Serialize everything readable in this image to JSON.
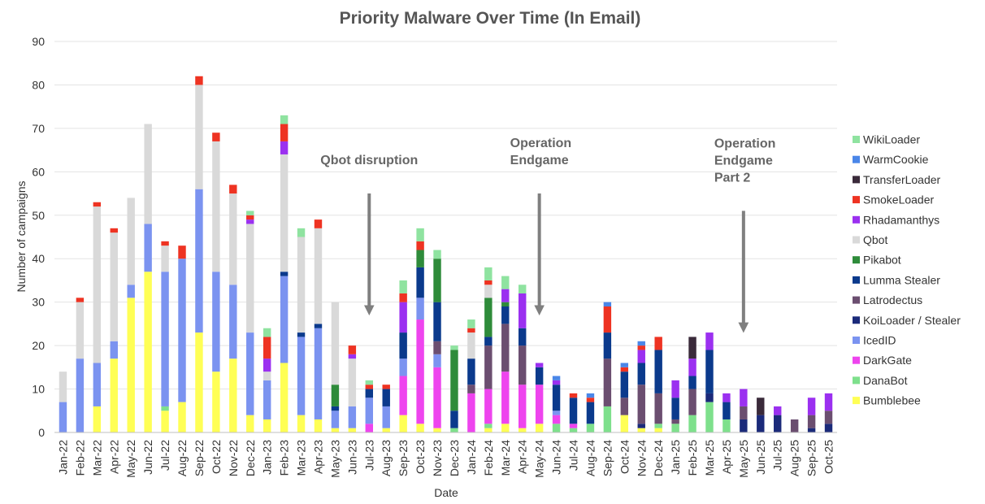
{
  "chart_data": {
    "type": "bar",
    "stacked": true,
    "title": "Priority Malware Over Time (In Email)",
    "xlabel": "Date",
    "ylabel": "Number of campaigns",
    "ylim": [
      0,
      90
    ],
    "yticks": [
      0,
      10,
      20,
      30,
      40,
      50,
      60,
      70,
      80,
      90
    ],
    "grid": true,
    "legend_position": "right",
    "categories": [
      "Jan-22",
      "Feb-22",
      "Mar-22",
      "Apr-22",
      "May-22",
      "Jun-22",
      "Jul-22",
      "Aug-22",
      "Sep-22",
      "Oct-22",
      "Nov-22",
      "Dec-22",
      "Jan-23",
      "Feb-23",
      "Mar-23",
      "Apr-23",
      "May-23",
      "Jun-23",
      "Jul-23",
      "Aug-23",
      "Sep-23",
      "Oct-23",
      "Nov-23",
      "Dec-23",
      "Jan-24",
      "Feb-24",
      "Mar-24",
      "Apr-24",
      "May-24",
      "Jun-24",
      "Jul-24",
      "Aug-24",
      "Sep-24",
      "Oct-24",
      "Nov-24",
      "Dec-24",
      "Jan-25",
      "Feb-25",
      "Mar-25",
      "Apr-25",
      "May-25",
      "Jun-25",
      "Jul-25",
      "Aug-25",
      "Sep-25",
      "Oct-25"
    ],
    "series": [
      {
        "name": "Bumblebee",
        "color": "#FFFF55",
        "values": [
          0,
          0,
          6,
          17,
          31,
          37,
          5,
          7,
          23,
          14,
          17,
          4,
          3,
          16,
          4,
          3,
          1,
          1,
          0,
          1,
          4,
          2,
          1,
          0,
          0,
          1,
          2,
          1,
          2,
          0,
          0,
          0,
          0,
          4,
          1,
          1,
          0,
          0,
          0,
          0,
          0,
          0,
          0,
          0,
          0,
          0
        ]
      },
      {
        "name": "DanaBot",
        "color": "#7EE08C",
        "values": [
          0,
          0,
          0,
          0,
          0,
          0,
          1,
          0,
          0,
          0,
          0,
          0,
          0,
          0,
          0,
          0,
          0,
          0,
          0,
          0,
          0,
          0,
          0,
          1,
          0,
          1,
          0,
          0,
          0,
          2,
          1,
          2,
          6,
          0,
          0,
          1,
          2,
          4,
          7,
          3,
          0,
          0,
          0,
          0,
          0,
          0
        ]
      },
      {
        "name": "DarkGate",
        "color": "#EE44EE",
        "values": [
          0,
          0,
          0,
          0,
          0,
          0,
          0,
          0,
          0,
          0,
          0,
          0,
          0,
          0,
          0,
          0,
          0,
          0,
          2,
          0,
          9,
          24,
          14,
          0,
          9,
          8,
          12,
          10,
          9,
          2,
          1,
          0,
          0,
          0,
          0,
          0,
          0,
          0,
          0,
          0,
          0,
          0,
          0,
          0,
          0,
          0
        ]
      },
      {
        "name": "IcedID",
        "color": "#7B93F0",
        "values": [
          7,
          17,
          10,
          4,
          3,
          11,
          31,
          33,
          33,
          23,
          17,
          19,
          9,
          20,
          18,
          21,
          4,
          5,
          6,
          5,
          4,
          5,
          3,
          0,
          0,
          0,
          0,
          0,
          0,
          1,
          0,
          0,
          0,
          0,
          0,
          0,
          0,
          0,
          0,
          0,
          0,
          0,
          0,
          0,
          0,
          0
        ]
      },
      {
        "name": "KoiLoader / Stealer",
        "color": "#1B2A7A",
        "values": [
          0,
          0,
          0,
          0,
          0,
          0,
          0,
          0,
          0,
          0,
          0,
          0,
          0,
          0,
          0,
          0,
          0,
          0,
          0,
          0,
          0,
          0,
          0,
          0,
          0,
          0,
          0,
          0,
          0,
          0,
          0,
          0,
          0,
          0,
          1,
          0,
          0,
          0,
          2,
          0,
          3,
          4,
          4,
          0,
          1,
          2
        ]
      },
      {
        "name": "Latrodectus",
        "color": "#6B4E70",
        "values": [
          0,
          0,
          0,
          0,
          0,
          0,
          0,
          0,
          0,
          0,
          0,
          0,
          0,
          0,
          0,
          0,
          0,
          0,
          0,
          0,
          0,
          0,
          3,
          0,
          2,
          10,
          11,
          9,
          0,
          0,
          0,
          0,
          11,
          4,
          9,
          7,
          1,
          6,
          0,
          0,
          3,
          0,
          0,
          3,
          3,
          3
        ]
      },
      {
        "name": "Lumma Stealer",
        "color": "#0B3A8C",
        "values": [
          0,
          0,
          0,
          0,
          0,
          0,
          0,
          0,
          0,
          0,
          0,
          0,
          0,
          1,
          1,
          1,
          1,
          0,
          2,
          4,
          6,
          7,
          9,
          4,
          6,
          2,
          4,
          4,
          4,
          6,
          6,
          5,
          6,
          6,
          5,
          10,
          5,
          3,
          10,
          4,
          0,
          0,
          0,
          0,
          0,
          0
        ]
      },
      {
        "name": "Pikabot",
        "color": "#2E8B3A",
        "values": [
          0,
          0,
          0,
          0,
          0,
          0,
          0,
          0,
          0,
          0,
          0,
          0,
          0,
          0,
          0,
          0,
          5,
          0,
          0,
          0,
          0,
          4,
          10,
          14,
          0,
          9,
          1,
          0,
          0,
          0,
          0,
          0,
          0,
          0,
          0,
          0,
          0,
          0,
          0,
          0,
          0,
          0,
          0,
          0,
          0,
          0
        ]
      },
      {
        "name": "Qbot",
        "color": "#D9D9D9",
        "values": [
          7,
          13,
          36,
          25,
          20,
          23,
          6,
          0,
          24,
          30,
          21,
          25,
          2,
          27,
          22,
          22,
          19,
          11,
          0,
          0,
          0,
          0,
          0,
          0,
          6,
          3,
          0,
          0,
          0,
          0,
          0,
          0,
          0,
          0,
          0,
          0,
          0,
          0,
          0,
          0,
          0,
          0,
          0,
          0,
          0,
          0
        ]
      },
      {
        "name": "Rhadamanthys",
        "color": "#9B30F0",
        "values": [
          0,
          0,
          0,
          0,
          0,
          0,
          0,
          0,
          0,
          0,
          0,
          1,
          3,
          3,
          0,
          0,
          0,
          1,
          0,
          0,
          7,
          0,
          0,
          0,
          0,
          0,
          3,
          8,
          1,
          1,
          0,
          0,
          0,
          0,
          3,
          0,
          4,
          4,
          4,
          2,
          4,
          0,
          2,
          0,
          4,
          4
        ]
      },
      {
        "name": "SmokeLoader",
        "color": "#EE3322",
        "values": [
          0,
          1,
          1,
          1,
          0,
          0,
          1,
          3,
          2,
          2,
          2,
          1,
          5,
          4,
          0,
          2,
          0,
          2,
          1,
          1,
          2,
          2,
          0,
          0,
          1,
          1,
          0,
          0,
          0,
          0,
          1,
          1,
          6,
          1,
          1,
          3,
          0,
          0,
          0,
          0,
          0,
          0,
          0,
          0,
          0,
          0
        ]
      },
      {
        "name": "TransferLoader",
        "color": "#3A2A3A",
        "values": [
          0,
          0,
          0,
          0,
          0,
          0,
          0,
          0,
          0,
          0,
          0,
          0,
          0,
          0,
          0,
          0,
          0,
          0,
          0,
          0,
          0,
          0,
          0,
          0,
          0,
          0,
          0,
          0,
          0,
          0,
          0,
          0,
          0,
          0,
          0,
          0,
          0,
          5,
          0,
          0,
          0,
          4,
          0,
          0,
          0,
          0
        ]
      },
      {
        "name": "WarmCookie",
        "color": "#4A86E8",
        "values": [
          0,
          0,
          0,
          0,
          0,
          0,
          0,
          0,
          0,
          0,
          0,
          0,
          0,
          0,
          0,
          0,
          0,
          0,
          0,
          0,
          0,
          0,
          0,
          0,
          0,
          0,
          0,
          0,
          0,
          1,
          0,
          1,
          1,
          1,
          1,
          0,
          0,
          0,
          0,
          0,
          0,
          0,
          0,
          0,
          0,
          0
        ]
      },
      {
        "name": "WikiLoader",
        "color": "#8FE3A0",
        "values": [
          0,
          0,
          0,
          0,
          0,
          0,
          0,
          0,
          0,
          0,
          0,
          1,
          2,
          2,
          2,
          0,
          0,
          0,
          1,
          0,
          3,
          3,
          2,
          1,
          2,
          3,
          3,
          2,
          0,
          0,
          0,
          0,
          0,
          0,
          0,
          0,
          0,
          0,
          0,
          0,
          0,
          0,
          0,
          0,
          0,
          0
        ]
      }
    ],
    "legend_order": [
      "WikiLoader",
      "WarmCookie",
      "TransferLoader",
      "SmokeLoader",
      "Rhadamanthys",
      "Qbot",
      "Pikabot",
      "Lumma Stealer",
      "Latrodectus",
      "KoiLoader / Stealer",
      "IcedID",
      "DarkGate",
      "DanaBot",
      "Bumblebee"
    ],
    "annotations": [
      {
        "lines": [
          "Qbot disruption"
        ],
        "category": "Jul-23",
        "arrow_top": 55,
        "arrow_bottom": 27
      },
      {
        "lines": [
          "Operation",
          "Endgame"
        ],
        "category": "May-24",
        "arrow_top": 55,
        "arrow_bottom": 27
      },
      {
        "lines": [
          "Operation",
          "Endgame",
          "Part 2"
        ],
        "category": "May-25",
        "arrow_top": 51,
        "arrow_bottom": 23
      }
    ]
  }
}
